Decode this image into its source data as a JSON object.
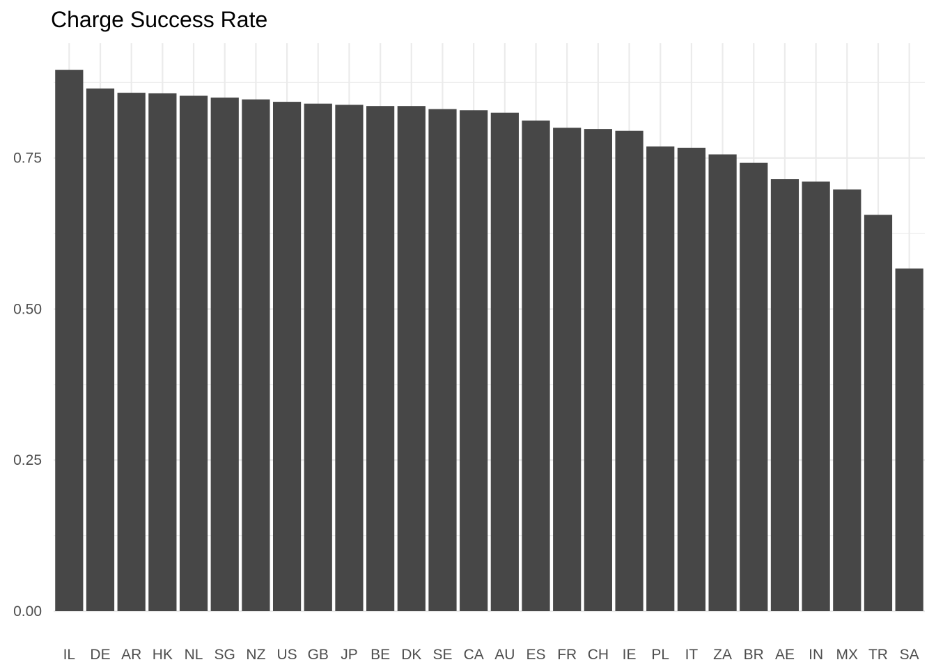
{
  "chart_data": {
    "type": "bar",
    "title": "Charge Success Rate",
    "xlabel": "",
    "ylabel": "",
    "categories": [
      "IL",
      "DE",
      "AR",
      "HK",
      "NL",
      "SG",
      "NZ",
      "US",
      "GB",
      "JP",
      "BE",
      "DK",
      "SE",
      "CA",
      "AU",
      "ES",
      "FR",
      "CH",
      "IE",
      "PL",
      "IT",
      "ZA",
      "BR",
      "AE",
      "IN",
      "MX",
      "TR",
      "SA"
    ],
    "values": [
      0.896,
      0.865,
      0.858,
      0.857,
      0.853,
      0.85,
      0.847,
      0.843,
      0.84,
      0.838,
      0.836,
      0.836,
      0.831,
      0.829,
      0.825,
      0.812,
      0.8,
      0.798,
      0.795,
      0.769,
      0.767,
      0.756,
      0.742,
      0.715,
      0.711,
      0.698,
      0.656,
      0.567
    ],
    "ylim": [
      0,
      0.94
    ],
    "y_ticks": [
      0,
      0.25,
      0.5,
      0.75
    ],
    "y_tick_labels": [
      "0.00",
      "0.25",
      "0.50",
      "0.75"
    ],
    "grid": true,
    "legend": "none",
    "colors": {
      "bar": "#474747",
      "grid": "#ebebeb",
      "tick_text": "#4d4d4d",
      "title": "#000000",
      "background": "#ffffff"
    }
  }
}
